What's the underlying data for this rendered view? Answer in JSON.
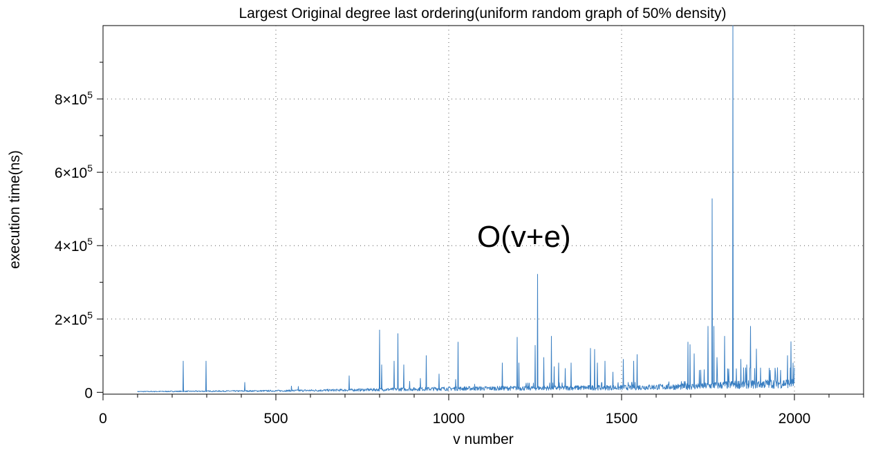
{
  "chart_data": {
    "type": "line",
    "title": "Largest Original degree last ordering(uniform random graph of 50% density)",
    "xlabel": "v number",
    "ylabel": "execution time(ns)",
    "annotation": "O(v+e)",
    "xlim": [
      0,
      2200
    ],
    "ylim": [
      -5000,
      1000000
    ],
    "x_ticks": [
      0,
      500,
      1000,
      1500,
      2000
    ],
    "x_tick_labels": [
      "0",
      "500",
      "1000",
      "1500",
      "2000"
    ],
    "y_ticks": [
      0,
      200000,
      400000,
      600000,
      800000
    ],
    "y_tick_labels": [
      {
        "mantissa": "0",
        "exponent": ""
      },
      {
        "mantissa": "2×10",
        "exponent": "5"
      },
      {
        "mantissa": "4×10",
        "exponent": "5"
      },
      {
        "mantissa": "6×10",
        "exponent": "5"
      },
      {
        "mantissa": "8×10",
        "exponent": "5"
      }
    ],
    "grid": true,
    "series": [
      {
        "color": "#3a7fc2",
        "x_range": [
          100,
          2000
        ],
        "baseline": [
          [
            100,
            2000
          ],
          [
            500,
            4000
          ],
          [
            700,
            6000
          ],
          [
            1000,
            10000
          ],
          [
            1300,
            12000
          ],
          [
            1500,
            13000
          ],
          [
            1700,
            16000
          ],
          [
            1850,
            22000
          ],
          [
            2000,
            25000
          ]
        ],
        "peaks": [
          [
            232,
            85000
          ],
          [
            298,
            85000
          ],
          [
            410,
            27000
          ],
          [
            545,
            17000
          ],
          [
            565,
            16000
          ],
          [
            712,
            45000
          ],
          [
            800,
            170000
          ],
          [
            806,
            75000
          ],
          [
            842,
            85000
          ],
          [
            853,
            160000
          ],
          [
            870,
            75000
          ],
          [
            887,
            30000
          ],
          [
            918,
            38000
          ],
          [
            935,
            100000
          ],
          [
            972,
            50000
          ],
          [
            1020,
            35000
          ],
          [
            1027,
            137000
          ],
          [
            1075,
            22000
          ],
          [
            1155,
            80000
          ],
          [
            1198,
            150000
          ],
          [
            1203,
            80000
          ],
          [
            1250,
            128000
          ],
          [
            1257,
            322000
          ],
          [
            1275,
            95000
          ],
          [
            1297,
            153000
          ],
          [
            1305,
            70000
          ],
          [
            1318,
            80000
          ],
          [
            1337,
            65000
          ],
          [
            1354,
            80000
          ],
          [
            1410,
            120000
          ],
          [
            1422,
            117000
          ],
          [
            1430,
            80000
          ],
          [
            1452,
            85000
          ],
          [
            1475,
            55000
          ],
          [
            1505,
            90000
          ],
          [
            1535,
            85000
          ],
          [
            1545,
            103000
          ],
          [
            1692,
            137000
          ],
          [
            1698,
            130000
          ],
          [
            1710,
            105000
          ],
          [
            1750,
            180000
          ],
          [
            1762,
            528000
          ],
          [
            1767,
            180000
          ],
          [
            1776,
            95000
          ],
          [
            1798,
            153000
          ],
          [
            1822,
            1000000
          ],
          [
            1845,
            90000
          ],
          [
            1862,
            75000
          ],
          [
            1873,
            180000
          ],
          [
            1890,
            118000
          ],
          [
            1930,
            60000
          ],
          [
            1945,
            55000
          ],
          [
            1960,
            60000
          ],
          [
            1980,
            100000
          ],
          [
            1990,
            138000
          ],
          [
            1996,
            80000
          ]
        ]
      }
    ]
  }
}
